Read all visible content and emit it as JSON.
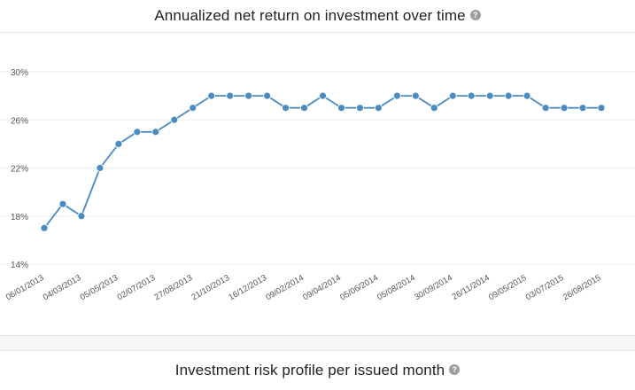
{
  "chart1": {
    "title": "Annualized net return on investment over time",
    "help_icon": "?",
    "help_icon_name": "question-circle-icon"
  },
  "chart2": {
    "title": "Investment risk profile per issued month",
    "help_icon": "?",
    "help_icon_name": "question-circle-icon"
  },
  "colors": {
    "line": "#4a8bc2",
    "point": "#4a8bc2",
    "grid": "#e6eef2",
    "axis_text": "#555555"
  },
  "chart_data": {
    "type": "line",
    "title": "Annualized net return on investment over time",
    "xlabel": "",
    "ylabel": "",
    "ylim": [
      14,
      30
    ],
    "y_ticks": [
      "14%",
      "18%",
      "22%",
      "26%",
      "30%"
    ],
    "y_tick_values": [
      14,
      18,
      22,
      26,
      30
    ],
    "grid": true,
    "x_tick_labels": [
      "06/01/2013",
      "04/03/2013",
      "05/05/2013",
      "02/07/2013",
      "27/08/2013",
      "21/10/2013",
      "16/12/2013",
      "09/02/2014",
      "09/04/2014",
      "05/06/2014",
      "05/08/2014",
      "30/09/2014",
      "26/11/2014",
      "09/05/2015",
      "03/07/2015",
      "26/08/2015"
    ],
    "x_tick_positions": [
      0,
      2,
      4,
      6,
      8,
      10,
      12,
      14,
      16,
      18,
      20,
      22,
      24,
      26,
      28,
      30
    ],
    "series": [
      {
        "values": [
          17,
          19,
          18,
          22,
          24,
          25,
          25,
          26,
          27,
          28,
          28,
          28,
          28,
          27,
          27,
          28,
          27,
          27,
          27,
          28,
          28,
          27,
          28,
          28,
          28,
          28,
          28,
          27,
          27,
          27,
          27
        ]
      }
    ]
  }
}
